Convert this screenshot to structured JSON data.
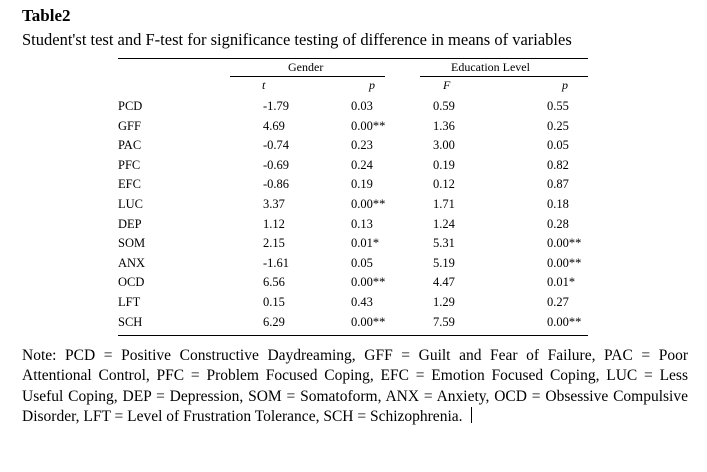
{
  "table": {
    "number": "Table2",
    "caption": "Student'st test and F-test for significance testing of difference in means of variables",
    "group_headers": [
      "Gender",
      "Education  Level"
    ],
    "sub_headers": [
      "t",
      "p",
      "F",
      "p"
    ],
    "rows": [
      [
        "PCD",
        "-1.79",
        "0.03",
        "0.59",
        "0.55"
      ],
      [
        "GFF",
        "4.69",
        "0.00**",
        "1.36",
        "0.25"
      ],
      [
        "PAC",
        "-0.74",
        "0.23",
        "3.00",
        "0.05"
      ],
      [
        "PFC",
        "-0.69",
        "0.24",
        "0.19",
        "0.82"
      ],
      [
        "EFC",
        "-0.86",
        "0.19",
        "0.12",
        "0.87"
      ],
      [
        "LUC",
        "3.37",
        "0.00**",
        "1.71",
        "0.18"
      ],
      [
        "DEP",
        "1.12",
        "0.13",
        "1.24",
        "0.28"
      ],
      [
        "SOM",
        "2.15",
        "0.01*",
        "5.31",
        "0.00**"
      ],
      [
        "ANX",
        "-1.61",
        "0.05",
        "5.19",
        "0.00**"
      ],
      [
        "OCD",
        "6.56",
        "0.00**",
        "4.47",
        "0.01*"
      ],
      [
        "LFT",
        "0.15",
        "0.43",
        "1.29",
        "0.27"
      ],
      [
        "SCH",
        "6.29",
        "0.00**",
        "7.59",
        "0.00**"
      ]
    ],
    "note": "Note: PCD = Positive Constructive Daydreaming, GFF = Guilt and Fear of Failure, PAC = Poor Attentional Control, PFC = Problem Focused Coping, EFC = Emotion Focused Coping, LUC = Less Useful Coping, DEP = Depression, SOM = Somatoform, ANX = Anxiety, OCD = Obsessive Compulsive Disorder, LFT = Level of Frustration Tolerance, SCH = Schizophrenia."
  }
}
